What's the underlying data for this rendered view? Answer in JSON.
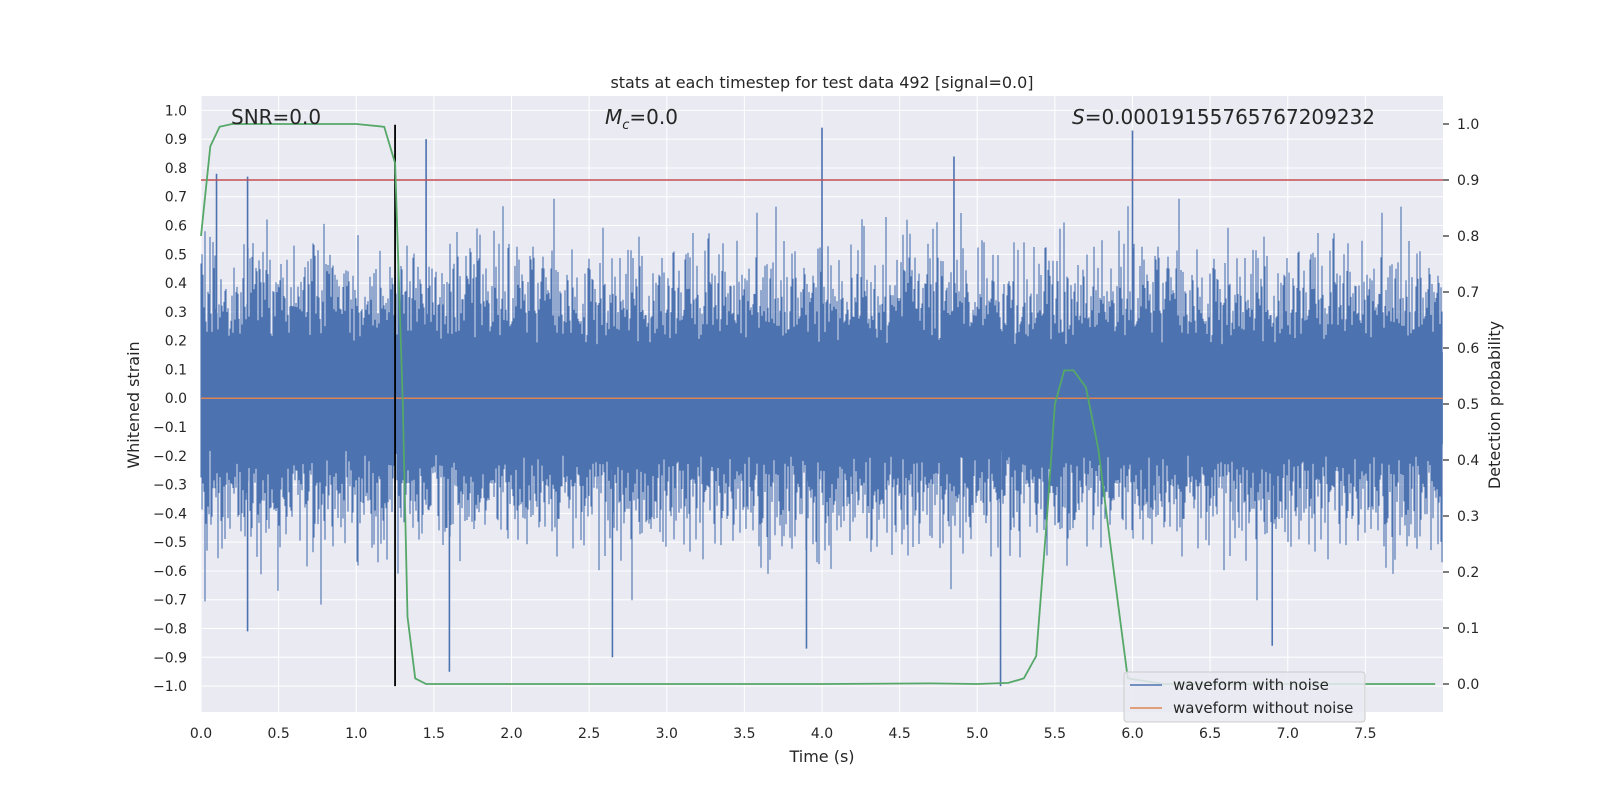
{
  "chart_data": {
    "type": "line",
    "title": "stats at each timestep for test data 492 [signal=0.0]",
    "xlabel": "Time (s)",
    "ylabel": "Whitened strain",
    "y2label": "Detection probability",
    "xlim": [
      0.0,
      8.0
    ],
    "ylim": [
      -1.09,
      1.05
    ],
    "y2lim": [
      -0.05,
      1.05
    ],
    "x_ticks": [
      0.0,
      0.5,
      1.0,
      1.5,
      2.0,
      2.5,
      3.0,
      3.5,
      4.0,
      4.5,
      5.0,
      5.5,
      6.0,
      6.5,
      7.0,
      7.5
    ],
    "x_tick_labels": [
      "0.0",
      "0.5",
      "1.0",
      "1.5",
      "2.0",
      "2.5",
      "3.0",
      "3.5",
      "4.0",
      "4.5",
      "5.0",
      "5.5",
      "6.0",
      "6.5",
      "7.0",
      "7.5"
    ],
    "y_ticks": [
      1.0,
      0.9,
      0.8,
      0.7,
      0.6,
      0.5,
      0.4,
      0.3,
      0.2,
      0.1,
      0.0,
      -0.1,
      -0.2,
      -0.3,
      -0.4,
      -0.5,
      -0.6,
      -0.7,
      -0.8,
      -0.9,
      -1.0
    ],
    "y_tick_labels": [
      "1.0",
      "0.9",
      "0.8",
      "0.7",
      "0.6",
      "0.5",
      "0.4",
      "0.3",
      "0.2",
      "0.1",
      "0.0",
      "−0.1",
      "−0.2",
      "−0.3",
      "−0.4",
      "−0.5",
      "−0.6",
      "−0.7",
      "−0.8",
      "−0.9",
      "−1.0"
    ],
    "y2_ticks": [
      1.0,
      0.9,
      0.8,
      0.7,
      0.6,
      0.5,
      0.4,
      0.3,
      0.2,
      0.1,
      0.0
    ],
    "y2_tick_labels": [
      "1.0",
      "0.9",
      "0.8",
      "0.7",
      "0.6",
      "0.5",
      "0.4",
      "0.3",
      "0.2",
      "0.1",
      "0.0"
    ],
    "annotations": {
      "snr": "SNR=0.0",
      "mc_symbol": "M",
      "mc_subscript": "c",
      "mc_value": "=0.0",
      "s_symbol": "S",
      "s_value": "=0.00019155765767209232"
    },
    "legend": {
      "placement": "lower-right",
      "entries": [
        {
          "label": "waveform with noise",
          "color": "#4c72b0"
        },
        {
          "label": "waveform without noise",
          "color": "#dd8452"
        }
      ]
    },
    "threshold": {
      "axis": "y2",
      "value": 0.9,
      "color": "#c44e52"
    },
    "merger_marker": {
      "x": 1.25,
      "y_range": [
        -1.0,
        0.95
      ],
      "color": "#000000"
    },
    "noise": {
      "name": "waveform with noise",
      "color": "#4c72b0",
      "x_range": [
        0.0,
        7.999
      ],
      "sample_rate_hz": 2048,
      "typical_range": [
        -0.6,
        0.6
      ],
      "min": -1.0,
      "max": 0.93,
      "peaks": [
        [
          0.1,
          0.78
        ],
        [
          0.3,
          0.77
        ],
        [
          1.45,
          0.9
        ],
        [
          4.0,
          0.94
        ],
        [
          4.85,
          0.84
        ],
        [
          6.0,
          0.93
        ],
        [
          0.3,
          -0.81
        ],
        [
          1.6,
          -0.95
        ],
        [
          2.65,
          -0.9
        ],
        [
          3.9,
          -0.87
        ],
        [
          5.15,
          -1.0
        ],
        [
          6.9,
          -0.86
        ]
      ]
    },
    "clean_waveform": {
      "name": "waveform without noise",
      "color": "#dd8452",
      "value": 0.0
    },
    "probability": {
      "name": "detection probability",
      "color": "#55a868",
      "x": [
        0.0,
        0.06,
        0.12,
        0.2,
        0.5,
        1.0,
        1.18,
        1.25,
        1.3,
        1.33,
        1.38,
        1.45,
        2.0,
        3.0,
        4.0,
        4.7,
        5.0,
        5.2,
        5.3,
        5.38,
        5.45,
        5.5,
        5.56,
        5.62,
        5.7,
        5.78,
        5.88,
        5.97,
        6.2,
        7.0,
        7.95
      ],
      "y": [
        0.8,
        0.96,
        0.995,
        1.0,
        1.0,
        1.0,
        0.995,
        0.93,
        0.5,
        0.12,
        0.01,
        0.0,
        0.0,
        0.0,
        0.0,
        0.001,
        0.0,
        0.002,
        0.01,
        0.05,
        0.3,
        0.5,
        0.56,
        0.56,
        0.53,
        0.42,
        0.2,
        0.01,
        0.0,
        0.0,
        0.0
      ]
    }
  }
}
